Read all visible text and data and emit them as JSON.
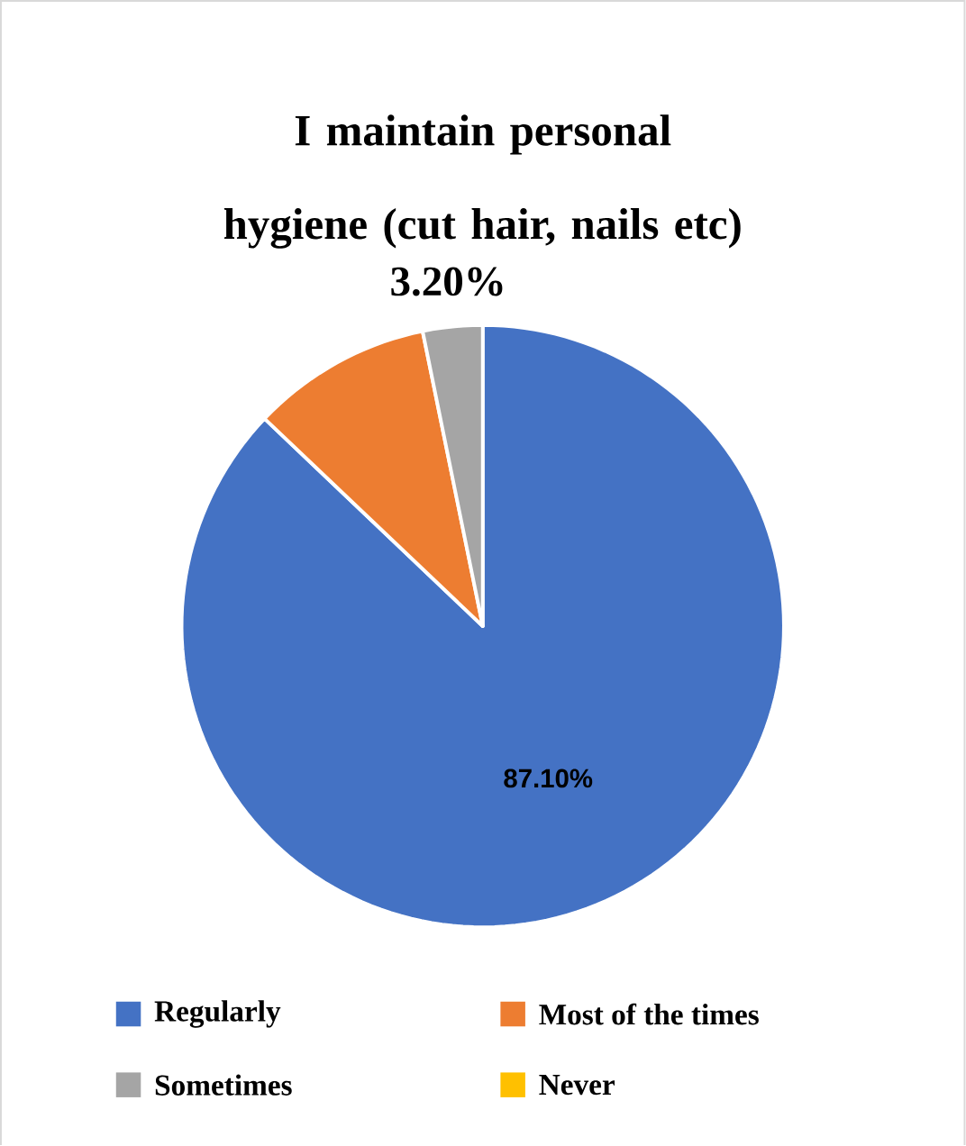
{
  "chart_data": {
    "type": "pie",
    "title": "I maintain personal hygiene (cut hair, nails etc)",
    "categories": [
      "Regularly",
      "Most of the times",
      "Sometimes",
      "Never"
    ],
    "values": [
      87.1,
      9.7,
      3.2,
      0
    ],
    "value_labels": [
      "87.10%",
      null,
      "3.20%",
      null
    ],
    "colors": [
      "#4472c4",
      "#ed7d31",
      "#a5a5a5",
      "#ffc000"
    ],
    "legend": "bottom"
  }
}
